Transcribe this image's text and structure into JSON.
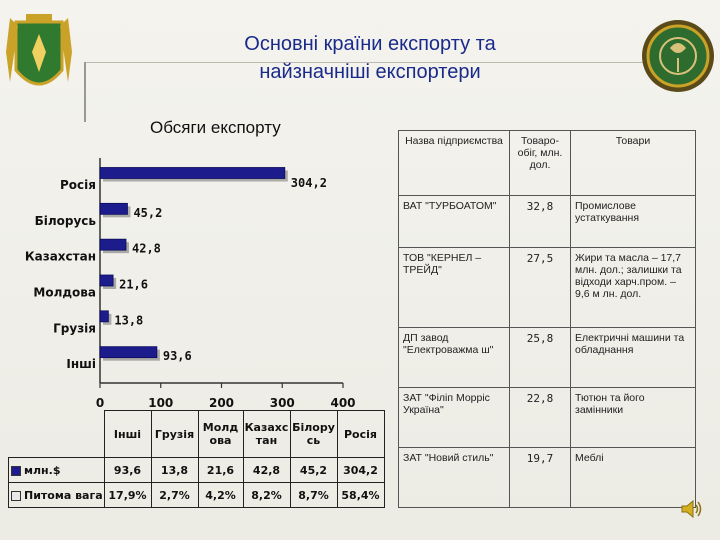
{
  "header": {
    "title_line1": "Основні країни експорту та",
    "title_line2": "найзначніші експортери",
    "subtitle": "Обсяги експорту"
  },
  "colors": {
    "bar": "#1c1c8c",
    "title": "#1a2a8a"
  },
  "icons": {
    "left": "coat-of-arms-icon",
    "right": "emblem-icon",
    "speaker": "speaker-icon"
  },
  "chart_data": {
    "type": "bar",
    "orientation": "horizontal",
    "categories": [
      "Росія",
      "Білорусь",
      "Казахстан",
      "Молдова",
      "Грузія",
      "Інші"
    ],
    "series": [
      {
        "name": "млн.$",
        "values": [
          304.2,
          45.2,
          42.8,
          21.6,
          13.8,
          93.6
        ]
      }
    ],
    "value_labels": [
      "304,2",
      "45,2",
      "42,8",
      "21,6",
      "13,8",
      "93,6"
    ],
    "xlim": [
      0,
      400
    ],
    "xticks": [
      0,
      100,
      200,
      300,
      400
    ],
    "xtick_labels": [
      "0",
      "100",
      "200",
      "300",
      "400"
    ]
  },
  "data_table": {
    "headers": [
      "Інші",
      "Грузія",
      "Молд ова",
      "Казахс тан",
      "Білору сь",
      "Росія"
    ],
    "rows": [
      {
        "label": "млн.$",
        "swatch": "#1c1c8c",
        "values": [
          "93,6",
          "13,8",
          "21,6",
          "42,8",
          "45,2",
          "304,2"
        ]
      },
      {
        "label": "Питома вага",
        "swatch": "#e8e8e8",
        "values": [
          "17,9%",
          "2,7%",
          "4,2%",
          "8,2%",
          "8,7%",
          "58,4%"
        ]
      }
    ]
  },
  "exporters": {
    "headers": [
      "Назва підприємства",
      "Товаро-обіг, млн. дол.",
      "Товари"
    ],
    "rows": [
      {
        "name": "ВАТ \"ТУРБОАТОМ\"",
        "turnover": "32,8",
        "goods": "Промислове устаткування"
      },
      {
        "name": "ТОВ \"КЕРНЕЛ – ТРЕЙД\"",
        "turnover": "27,5",
        "goods": "Жири та масла – 17,7 млн. дол.; залишки та відходи харч.пром. – 9,6 м лн. дол."
      },
      {
        "name": "ДП завод \"Електроважма ш\"",
        "turnover": "25,8",
        "goods": "Електричні машини та обладнання"
      },
      {
        "name": "ЗАТ \"Філіп Морріс Україна\"",
        "turnover": "22,8",
        "goods": "Тютюн та його замінники"
      },
      {
        "name": "ЗАТ \"Новий стиль\"",
        "turnover": "19,7",
        "goods": "Меблі"
      }
    ]
  }
}
